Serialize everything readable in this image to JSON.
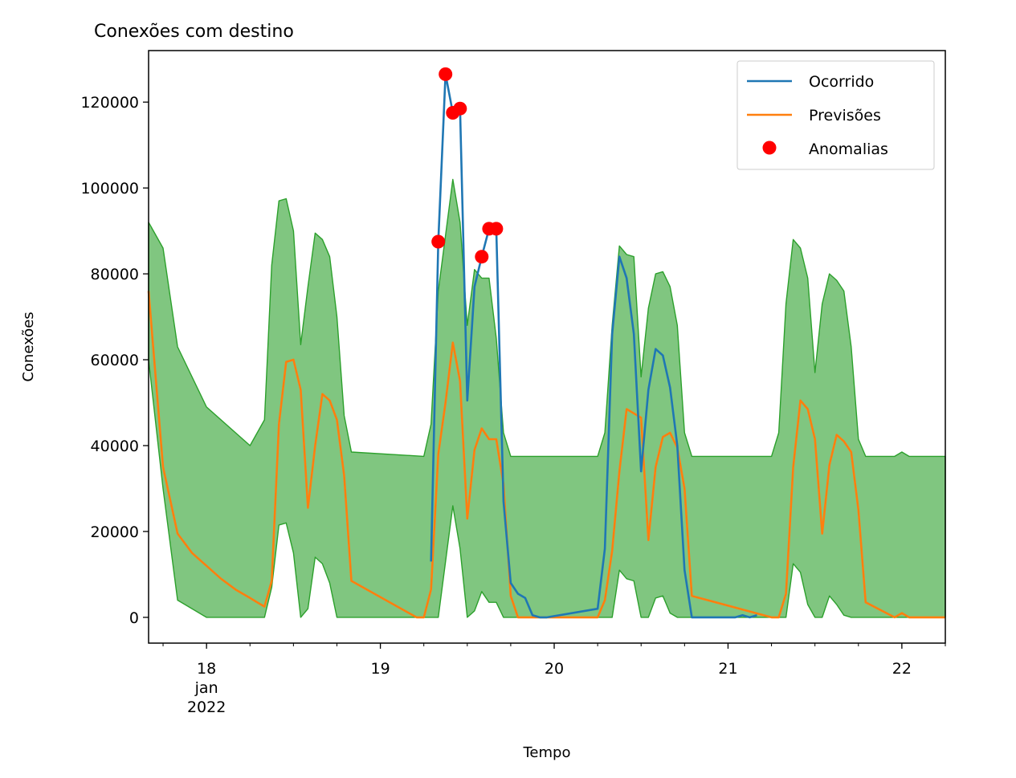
{
  "chart_data": {
    "type": "line",
    "title": "Conexões com destino",
    "xlabel": "Tempo",
    "ylabel": "Conexões",
    "xlim": [
      "2022-01-17T16:00",
      "2022-01-22T06:00"
    ],
    "ylim": [
      -6000,
      132000
    ],
    "grid": false,
    "legend_position": "top-right",
    "x_ticks": [
      {
        "x": "2022-01-18T00:00",
        "label": "18",
        "sub": [
          "jan",
          "2022"
        ]
      },
      {
        "x": "2022-01-19T00:00",
        "label": "19"
      },
      {
        "x": "2022-01-20T00:00",
        "label": "20"
      },
      {
        "x": "2022-01-21T00:00",
        "label": "21"
      },
      {
        "x": "2022-01-22T00:00",
        "label": "22"
      }
    ],
    "y_ticks": [
      0,
      20000,
      40000,
      60000,
      80000,
      100000,
      120000
    ],
    "colors": {
      "actual": "#1f77b4",
      "forecast": "#ff7f0e",
      "band": "#2ca02c",
      "anomaly": "#ff0000"
    },
    "legend": [
      "Ocorrido",
      "Previsões",
      "Anomalias"
    ],
    "band": {
      "name": "",
      "x": [
        "2022-01-17T16:00",
        "2022-01-17T18:00",
        "2022-01-17T20:00",
        "2022-01-18T00:00",
        "2022-01-18T06:00",
        "2022-01-18T08:00",
        "2022-01-18T09:00",
        "2022-01-18T10:00",
        "2022-01-18T11:00",
        "2022-01-18T12:00",
        "2022-01-18T13:00",
        "2022-01-18T14:00",
        "2022-01-18T15:00",
        "2022-01-18T16:00",
        "2022-01-18T17:00",
        "2022-01-18T18:00",
        "2022-01-18T19:00",
        "2022-01-18T20:00",
        "2022-01-19T06:00",
        "2022-01-19T07:00",
        "2022-01-19T08:00",
        "2022-01-19T10:00",
        "2022-01-19T11:00",
        "2022-01-19T12:00",
        "2022-01-19T13:00",
        "2022-01-19T14:00",
        "2022-01-19T15:00",
        "2022-01-19T16:00",
        "2022-01-19T17:00",
        "2022-01-19T18:00",
        "2022-01-19T19:00",
        "2022-01-20T06:00",
        "2022-01-20T07:00",
        "2022-01-20T08:00",
        "2022-01-20T09:00",
        "2022-01-20T10:00",
        "2022-01-20T11:00",
        "2022-01-20T12:00",
        "2022-01-20T13:00",
        "2022-01-20T14:00",
        "2022-01-20T15:00",
        "2022-01-20T16:00",
        "2022-01-20T17:00",
        "2022-01-20T18:00",
        "2022-01-20T19:00",
        "2022-01-21T06:00",
        "2022-01-21T07:00",
        "2022-01-21T08:00",
        "2022-01-21T09:00",
        "2022-01-21T10:00",
        "2022-01-21T11:00",
        "2022-01-21T12:00",
        "2022-01-21T13:00",
        "2022-01-21T14:00",
        "2022-01-21T15:00",
        "2022-01-21T16:00",
        "2022-01-21T17:00",
        "2022-01-21T18:00",
        "2022-01-21T19:00",
        "2022-01-21T23:00",
        "2022-01-22T00:00",
        "2022-01-22T01:00",
        "2022-01-22T06:00"
      ],
      "upper": [
        92000,
        86000,
        63000,
        49000,
        40000,
        46000,
        82000,
        97000,
        97500,
        90000,
        63500,
        77000,
        89500,
        88000,
        84000,
        70000,
        47000,
        38500,
        37500,
        45000,
        76000,
        102000,
        92000,
        68000,
        81000,
        79000,
        79000,
        65000,
        43000,
        37500,
        37500,
        37500,
        43000,
        68000,
        86500,
        84500,
        84000,
        56000,
        72000,
        80000,
        80500,
        77000,
        68000,
        43000,
        37500,
        37500,
        43000,
        73000,
        88000,
        86000,
        79000,
        57000,
        73000,
        80000,
        78500,
        76000,
        63000,
        41500,
        37500,
        37500,
        38500,
        37500,
        37500
      ],
      "lower": [
        60000,
        30000,
        4000,
        0,
        0,
        0,
        7000,
        21500,
        22000,
        15000,
        0,
        2000,
        14000,
        12500,
        8000,
        0,
        0,
        0,
        0,
        0,
        0,
        26000,
        16000,
        0,
        1500,
        6000,
        3500,
        3500,
        0,
        0,
        0,
        0,
        0,
        0,
        11000,
        9000,
        8500,
        0,
        0,
        4500,
        5000,
        1000,
        0,
        0,
        0,
        0,
        0,
        0,
        12500,
        10500,
        3000,
        0,
        0,
        5000,
        3000,
        500,
        0,
        0,
        0,
        0,
        0,
        0,
        0
      ]
    },
    "series": [
      {
        "name": "Ocorrido",
        "x": [
          "2022-01-19T07:00",
          "2022-01-19T08:00",
          "2022-01-19T09:00",
          "2022-01-19T10:00",
          "2022-01-19T11:00",
          "2022-01-19T12:00",
          "2022-01-19T13:00",
          "2022-01-19T14:00",
          "2022-01-19T15:00",
          "2022-01-19T16:00",
          "2022-01-19T17:00",
          "2022-01-19T18:00",
          "2022-01-19T19:00",
          "2022-01-19T20:00",
          "2022-01-19T21:00",
          "2022-01-19T22:00",
          "2022-01-19T23:00",
          "2022-01-20T06:00",
          "2022-01-20T07:00",
          "2022-01-20T08:00",
          "2022-01-20T09:00",
          "2022-01-20T10:00",
          "2022-01-20T11:00",
          "2022-01-20T12:00",
          "2022-01-20T13:00",
          "2022-01-20T14:00",
          "2022-01-20T15:00",
          "2022-01-20T16:00",
          "2022-01-20T17:00",
          "2022-01-20T18:00",
          "2022-01-20T19:00",
          "2022-01-21T01:00",
          "2022-01-21T02:00",
          "2022-01-21T03:00",
          "2022-01-21T04:00"
        ],
        "y": [
          13000,
          87500,
          126500,
          117500,
          118500,
          50500,
          77000,
          84000,
          90500,
          90500,
          27000,
          8000,
          5500,
          4500,
          500,
          0,
          0,
          2000,
          16000,
          66000,
          84000,
          79000,
          66000,
          34000,
          53000,
          62500,
          61000,
          53500,
          40000,
          11000,
          0,
          0,
          500,
          0,
          500
        ]
      },
      {
        "name": "Previsões",
        "x": [
          "2022-01-17T16:00",
          "2022-01-17T18:00",
          "2022-01-17T20:00",
          "2022-01-17T22:00",
          "2022-01-18T00:00",
          "2022-01-18T02:00",
          "2022-01-18T04:00",
          "2022-01-18T06:00",
          "2022-01-18T07:00",
          "2022-01-18T08:00",
          "2022-01-18T09:00",
          "2022-01-18T10:00",
          "2022-01-18T11:00",
          "2022-01-18T12:00",
          "2022-01-18T13:00",
          "2022-01-18T14:00",
          "2022-01-18T15:00",
          "2022-01-18T16:00",
          "2022-01-18T17:00",
          "2022-01-18T18:00",
          "2022-01-18T19:00",
          "2022-01-18T20:00",
          "2022-01-19T05:00",
          "2022-01-19T06:00",
          "2022-01-19T07:00",
          "2022-01-19T08:00",
          "2022-01-19T09:00",
          "2022-01-19T10:00",
          "2022-01-19T11:00",
          "2022-01-19T12:00",
          "2022-01-19T13:00",
          "2022-01-19T14:00",
          "2022-01-19T15:00",
          "2022-01-19T16:00",
          "2022-01-19T17:00",
          "2022-01-19T18:00",
          "2022-01-19T19:00",
          "2022-01-20T05:00",
          "2022-01-20T06:00",
          "2022-01-20T07:00",
          "2022-01-20T08:00",
          "2022-01-20T09:00",
          "2022-01-20T10:00",
          "2022-01-20T11:00",
          "2022-01-20T12:00",
          "2022-01-20T13:00",
          "2022-01-20T14:00",
          "2022-01-20T15:00",
          "2022-01-20T16:00",
          "2022-01-20T17:00",
          "2022-01-20T18:00",
          "2022-01-20T19:00",
          "2022-01-21T06:00",
          "2022-01-21T07:00",
          "2022-01-21T08:00",
          "2022-01-21T09:00",
          "2022-01-21T10:00",
          "2022-01-21T11:00",
          "2022-01-21T12:00",
          "2022-01-21T13:00",
          "2022-01-21T14:00",
          "2022-01-21T15:00",
          "2022-01-21T16:00",
          "2022-01-21T17:00",
          "2022-01-21T18:00",
          "2022-01-21T19:00",
          "2022-01-21T23:00",
          "2022-01-22T00:00",
          "2022-01-22T01:00",
          "2022-01-22T06:00"
        ],
        "y": [
          76000,
          35000,
          19500,
          15000,
          12000,
          9000,
          6500,
          4500,
          3500,
          2500,
          8500,
          45000,
          59500,
          60000,
          53000,
          25500,
          40000,
          52000,
          50500,
          46000,
          33000,
          8500,
          0,
          0,
          6500,
          38000,
          50000,
          64000,
          55000,
          23000,
          39000,
          44000,
          41500,
          41500,
          31000,
          5000,
          0,
          0,
          0,
          4000,
          15500,
          34000,
          48500,
          47500,
          46500,
          18000,
          35000,
          42000,
          43000,
          39500,
          30000,
          5000,
          0,
          0,
          5500,
          35000,
          50500,
          48500,
          41500,
          19500,
          35500,
          42500,
          41000,
          38500,
          25000,
          3500,
          0,
          1000,
          0,
          0
        ]
      },
      {
        "name": "Anomalias",
        "type": "scatter",
        "x": [
          "2022-01-19T08:00",
          "2022-01-19T09:00",
          "2022-01-19T10:00",
          "2022-01-19T11:00",
          "2022-01-19T14:00",
          "2022-01-19T15:00",
          "2022-01-19T16:00"
        ],
        "y": [
          87500,
          126500,
          117500,
          118500,
          84000,
          90500,
          90500
        ]
      }
    ]
  }
}
